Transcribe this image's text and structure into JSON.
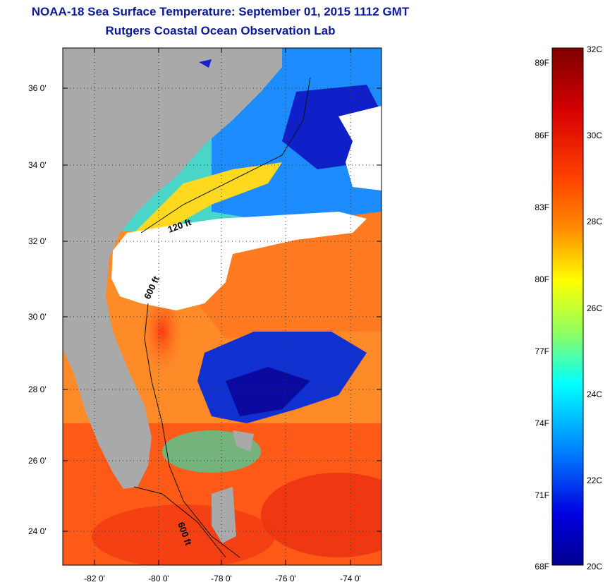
{
  "header": {
    "title": "NOAA-18 Sea Surface Temperature:  September 01, 2015 1112 GMT",
    "subtitle": "Rutgers Coastal Ocean Observation Lab"
  },
  "map": {
    "lat_ticks": [
      "24 0'",
      "26 0'",
      "28 0'",
      "30 0'",
      "32 0'",
      "34 0'",
      "36 0'"
    ],
    "lon_ticks": [
      "-82 0'",
      "-80 0'",
      "-78 0'",
      "-76 0'",
      "-74 0'"
    ],
    "lat_range": [
      23.0,
      37.0
    ],
    "lon_range": [
      -83.0,
      -73.0
    ],
    "contour_labels": [
      "120 ft",
      "600 ft",
      "600 ft"
    ],
    "land_color": "#a9a9a9",
    "cloud_color": "#ffffff",
    "grid": "dotted"
  },
  "colorbar": {
    "celsius_labels": [
      "32C",
      "30C",
      "28C",
      "26C",
      "24C",
      "22C",
      "20C"
    ],
    "fahrenheit_labels": [
      "89F",
      "86F",
      "83F",
      "80F",
      "77F",
      "74F",
      "71F",
      "68F"
    ],
    "colormap": [
      "#7f0000",
      "#ff2000",
      "#ff8c00",
      "#ffff00",
      "#7fff7f",
      "#00ffff",
      "#0080ff",
      "#0000d0",
      "#00008f"
    ]
  }
}
